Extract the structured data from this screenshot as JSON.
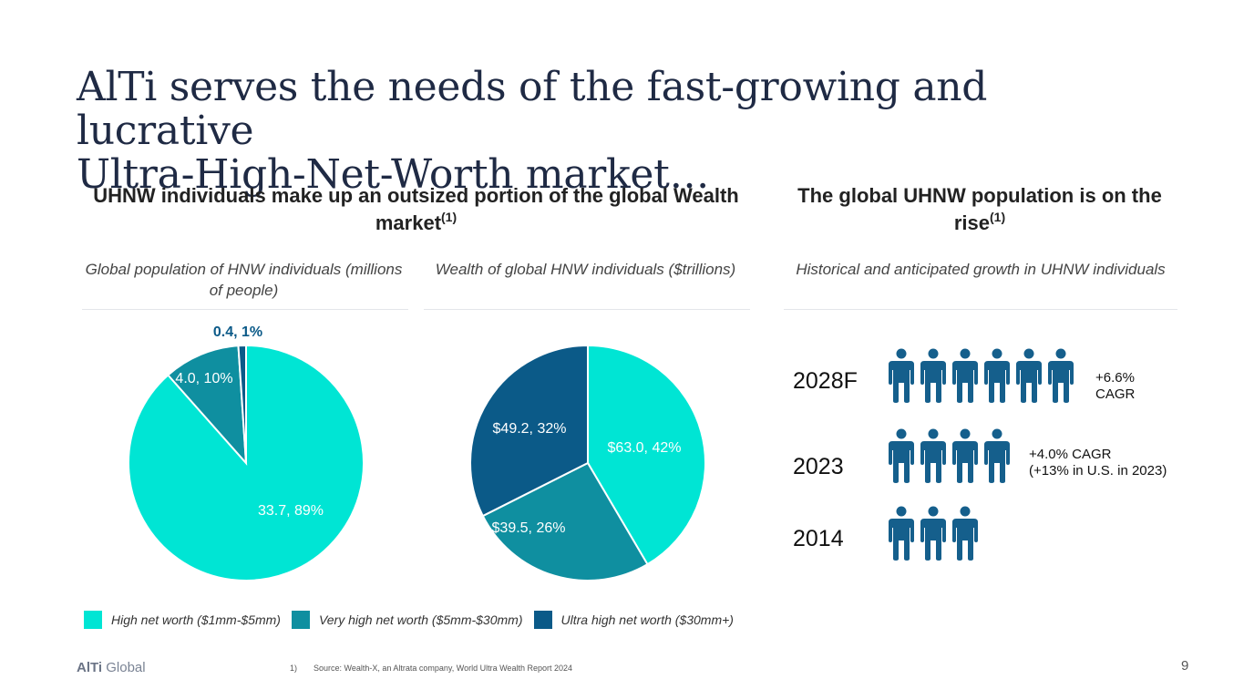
{
  "title": {
    "line1": "AlTi serves the needs of the fast-growing and lucrative",
    "line2": "Ultra-High-Net-Worth market…"
  },
  "left_section": {
    "heading": "UHNW individuals make up an outsized portion of the global Wealth market",
    "heading_ref": "(1)"
  },
  "right_section": {
    "heading": "The global UHNW population is on the rise",
    "heading_ref": "(1)",
    "subtitle": "Historical and anticipated growth in UHNW individuals"
  },
  "colors": {
    "high": "#00e5d4",
    "very_high": "#0f8fa0",
    "ultra_high": "#0b5a88",
    "person": "#155f8c"
  },
  "chart_data": [
    {
      "type": "pie",
      "title": "Global population of HNW individuals (millions of people)",
      "categories": [
        "High net worth ($1mm-$5mm)",
        "Very high net worth ($5mm-$30mm)",
        "Ultra high net worth ($30mm+)"
      ],
      "values": [
        33.7,
        4.0,
        0.4
      ],
      "labels": [
        "33.7, 89%",
        "4.0, 10%",
        "0.4, 1%"
      ],
      "colors": [
        "#00e5d4",
        "#0f8fa0",
        "#0b5a88"
      ],
      "label_colors": [
        "#ffffff",
        "#ffffff",
        "#0b5a88"
      ]
    },
    {
      "type": "pie",
      "title": "Wealth of global HNW individuals ($trillions)",
      "categories": [
        "High net worth ($1mm-$5mm)",
        "Very high net worth ($5mm-$30mm)",
        "Ultra high net worth ($30mm+)"
      ],
      "values": [
        63.0,
        39.5,
        49.2
      ],
      "labels": [
        "$63.0, 42%",
        "$39.5, 26%",
        "$49.2, 32%"
      ],
      "colors": [
        "#00e5d4",
        "#0f8fa0",
        "#0b5a88"
      ],
      "label_colors": [
        "#ffffff",
        "#ffffff",
        "#ffffff"
      ]
    }
  ],
  "legend": [
    {
      "label": "High net worth ($1mm-$5mm)",
      "color": "#00e5d4"
    },
    {
      "label": "Very high net worth ($5mm-$30mm)",
      "color": "#0f8fa0"
    },
    {
      "label": "Ultra high net worth ($30mm+)",
      "color": "#0b5a88"
    }
  ],
  "growth_rows": [
    {
      "year": "2028F",
      "people": 6,
      "note_line1": "+6.6%",
      "note_line2": "CAGR"
    },
    {
      "year": "2023",
      "people": 4,
      "note_line1": "+4.0% CAGR",
      "note_line2": "(+13% in U.S. in 2023)"
    },
    {
      "year": "2014",
      "people": 3,
      "note_line1": "",
      "note_line2": ""
    }
  ],
  "footer": {
    "logo_bold": "AlTi",
    "logo_rest": " Global",
    "footnote_num": "1)",
    "footnote_text": "Source: Wealth-X, an Altrata company, World Ultra Wealth Report 2024",
    "page_number": "9"
  }
}
